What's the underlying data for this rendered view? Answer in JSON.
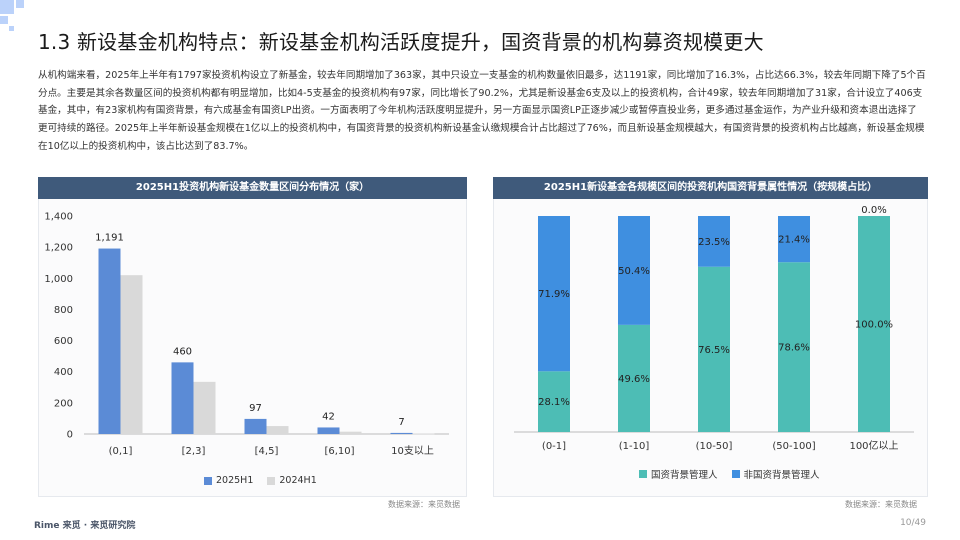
{
  "title": "1.3 新设基金机构特点：新设基金机构活跃度提升，国资背景的机构募资规模更大",
  "intro": "从机构端来看，2025年上半年有1797家投资机构设立了新基金，较去年同期增加了363家，其中只设立一支基金的机构数量依旧最多，达1191家，同比增加了16.3%，占比达66.3%，较去年同期下降了5个百分点。主要是其余各数量区间的投资机构都有明显增加，比如4-5支基金的投资机构有97家，同比增长了90.2%，尤其是新设基金6支及以上的投资机构，合计49家，较去年同期增加了31家，合计设立了406支基金，其中，有23家机构有国资背景，有六成基金有国资LP出资。一方面表明了今年机构活跃度明显提升，另一方面显示国资LP正逐步减少或暂停直投业务，更多通过基金运作，为产业升级和资本退出选择了更可持续的路径。2025年上半年新设基金规模在1亿以上的投资机构中，有国资背景的投资机构新设基金认缴规模合计占比超过了76%，而且新设基金规模越大，有国资背景的投资机构占比越高，新设基金规模在10亿以上的投资机构中，该占比达到了83.7%。",
  "left_panel": {
    "header": "2025H1投资机构新设基金数量区间分布情况（家）",
    "source": "数据来源：来觅数据"
  },
  "right_panel": {
    "header": "2025H1新设基金各规模区间的投资机构国资背景属性情况（按规模占比）",
    "source": "数据来源：来觅数据"
  },
  "footer": {
    "brand": "Rime 来觅 · 来觅研究院",
    "page": "10/49"
  },
  "chart_data": [
    {
      "type": "bar",
      "categories": [
        "(0,1]",
        "[2,3]",
        "[4,5]",
        "[6,10]",
        "10支以上"
      ],
      "series": [
        {
          "name": "2025H1",
          "values": [
            1191,
            460,
            97,
            42,
            7
          ],
          "color": "#5b8bd6",
          "labels": [
            "1,191",
            "460",
            "97",
            "42",
            "7"
          ]
        },
        {
          "name": "2024H1",
          "values": [
            1020,
            335,
            51,
            15,
            3
          ],
          "color": "#d9d9d9"
        }
      ],
      "ylim": [
        0,
        1400
      ],
      "yticks": [
        0,
        200,
        400,
        600,
        800,
        1000,
        1200,
        1400
      ],
      "ytick_labels": [
        "0",
        "200",
        "400",
        "600",
        "800",
        "1,000",
        "1,200",
        "1,400"
      ],
      "legend": "bottom"
    },
    {
      "type": "bar",
      "stacked": true,
      "categories": [
        "(0-1]",
        "(1-10]",
        "(10-50]",
        "(50-100]",
        "100亿以上"
      ],
      "series": [
        {
          "name": "国资背景管理人",
          "values": [
            28.1,
            49.6,
            76.5,
            78.6,
            100.0
          ],
          "labels": [
            "28.1%",
            "49.6%",
            "76.5%",
            "78.6%",
            "100.0%"
          ],
          "color": "#4dbdb5"
        },
        {
          "name": "非国资背景管理人",
          "values": [
            71.9,
            50.4,
            23.5,
            21.4,
            0.0
          ],
          "labels": [
            "71.9%",
            "50.4%",
            "23.5%",
            "21.4%",
            "0.0%"
          ],
          "color": "#3f8fe0"
        }
      ],
      "ylim": [
        0,
        100
      ],
      "legend": "bottom"
    }
  ]
}
